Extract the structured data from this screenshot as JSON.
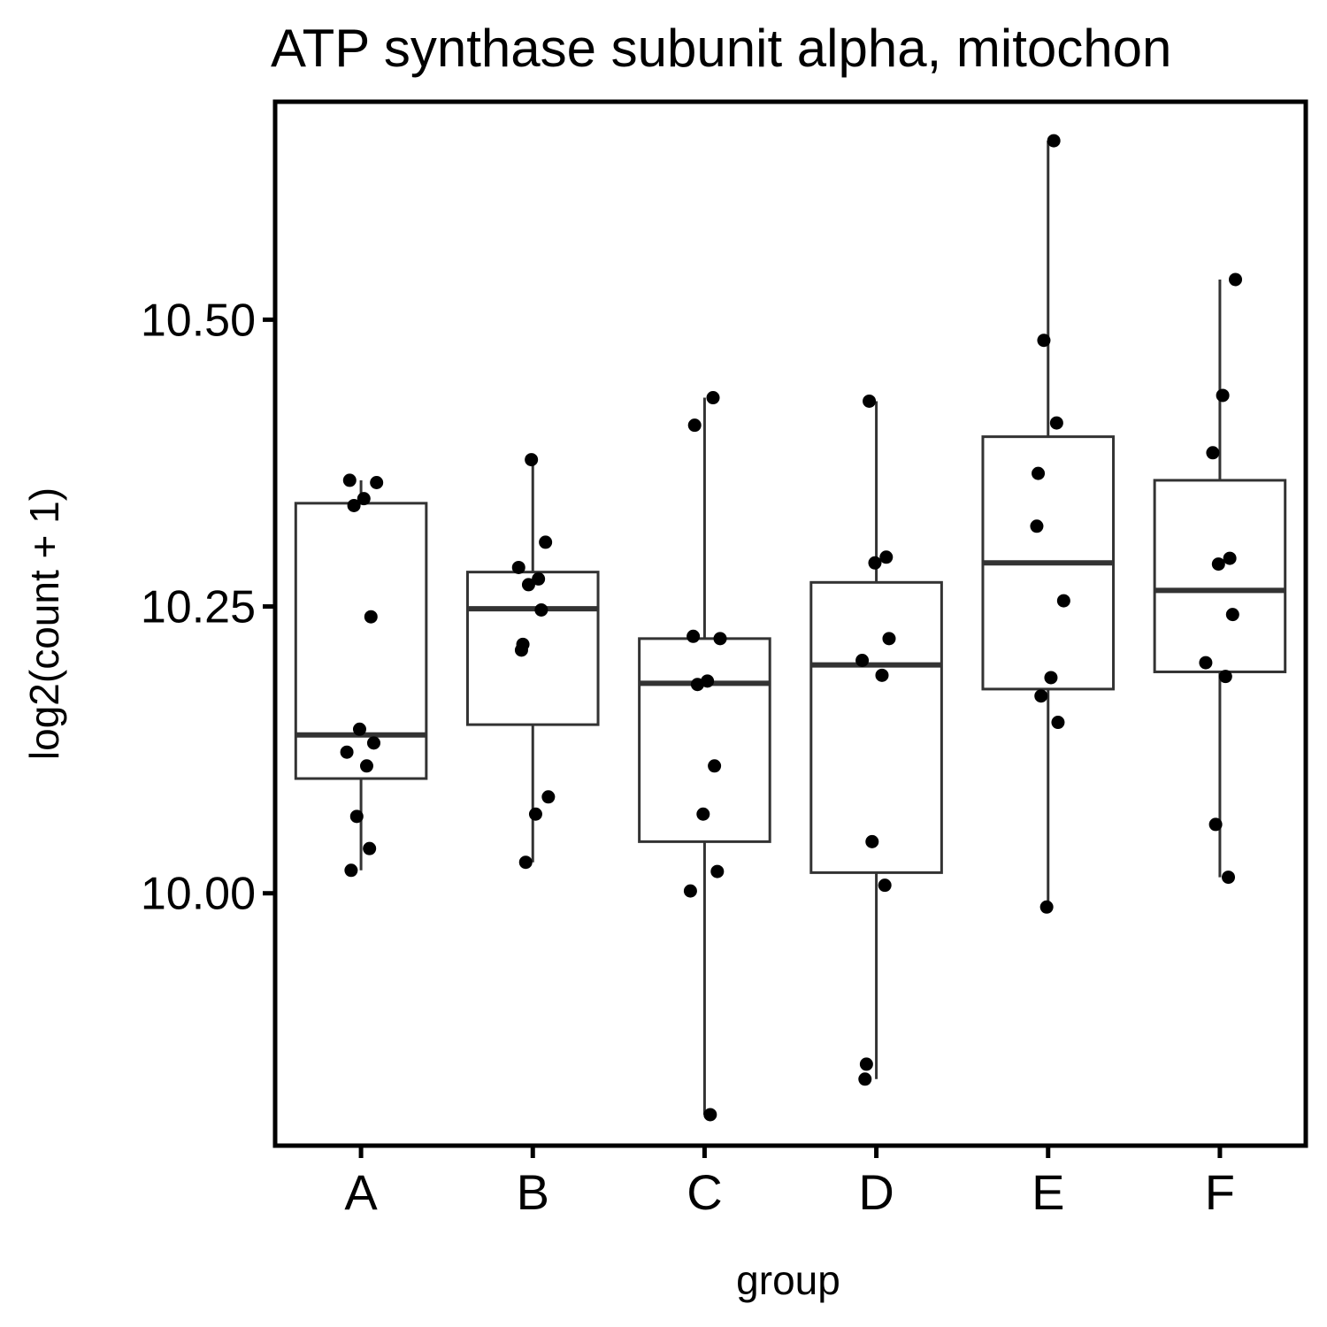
{
  "chart_data": {
    "type": "box",
    "title": "ATP synthase subunit alpha, mitochon",
    "xlabel": "group",
    "ylabel": "log2(count + 1)",
    "ylim": [
      9.78,
      10.69
    ],
    "yticks": [
      10.0,
      10.25,
      10.5
    ],
    "ytick_labels": [
      "10.00",
      "10.25",
      "10.50"
    ],
    "grid": false,
    "categories": [
      "A",
      "B",
      "C",
      "D",
      "E",
      "F"
    ],
    "boxes": [
      {
        "group": "A",
        "whisker_low": 10.02,
        "q1": 10.1,
        "median": 10.138,
        "q3": 10.34,
        "whisker_high": 10.36
      },
      {
        "group": "B",
        "whisker_low": 10.027,
        "q1": 10.147,
        "median": 10.248,
        "q3": 10.28,
        "whisker_high": 10.378
      },
      {
        "group": "C",
        "whisker_low": 9.807,
        "q1": 10.045,
        "median": 10.183,
        "q3": 10.222,
        "whisker_high": 10.432
      },
      {
        "group": "D",
        "whisker_low": 9.838,
        "q1": 10.018,
        "median": 10.199,
        "q3": 10.271,
        "whisker_high": 10.429
      },
      {
        "group": "E",
        "whisker_low": 9.988,
        "q1": 10.178,
        "median": 10.288,
        "q3": 10.398,
        "whisker_high": 10.656
      },
      {
        "group": "F",
        "whisker_low": 10.014,
        "q1": 10.193,
        "median": 10.264,
        "q3": 10.36,
        "whisker_high": 10.535
      }
    ],
    "points": [
      {
        "group": "A",
        "values": [
          10.36,
          10.358,
          10.344,
          10.338,
          10.241,
          10.143,
          10.131,
          10.123,
          10.111,
          10.067,
          10.039,
          10.02
        ]
      },
      {
        "group": "B",
        "values": [
          10.378,
          10.306,
          10.284,
          10.274,
          10.269,
          10.247,
          10.217,
          10.212,
          10.084,
          10.069,
          10.027
        ]
      },
      {
        "group": "C",
        "values": [
          10.432,
          10.408,
          10.224,
          10.222,
          10.185,
          10.182,
          10.111,
          10.069,
          10.019,
          10.002,
          9.807
        ]
      },
      {
        "group": "D",
        "values": [
          10.429,
          10.293,
          10.288,
          10.222,
          10.203,
          10.19,
          10.045,
          10.007,
          9.851,
          9.838
        ]
      },
      {
        "group": "E",
        "values": [
          10.656,
          10.482,
          10.41,
          10.366,
          10.32,
          10.255,
          10.188,
          10.172,
          10.149,
          9.988
        ]
      },
      {
        "group": "F",
        "values": [
          10.535,
          10.434,
          10.384,
          10.292,
          10.287,
          10.243,
          10.201,
          10.189,
          10.06,
          10.014
        ]
      }
    ]
  }
}
